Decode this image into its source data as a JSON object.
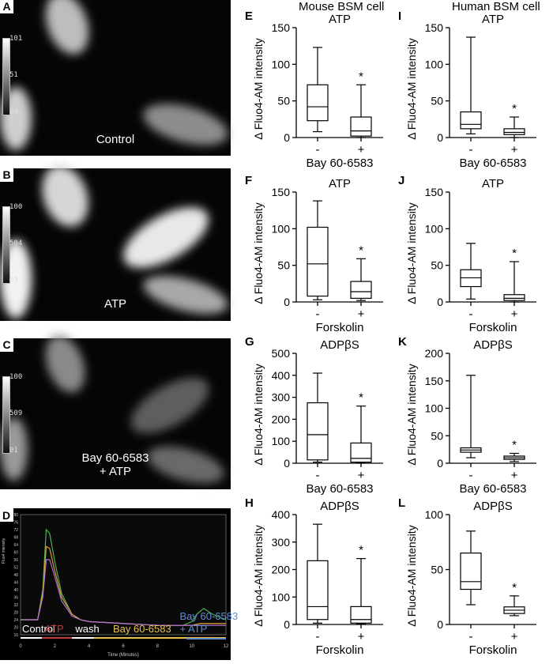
{
  "micro_panels": [
    {
      "id": "A",
      "caption": "Control",
      "scale_ticks": [
        "101",
        "51",
        "04"
      ]
    },
    {
      "id": "B",
      "caption": "ATP",
      "scale_ticks": [
        "100",
        "504",
        "03"
      ]
    },
    {
      "id": "C",
      "caption": "Bay 60-6583\n+ ATP",
      "scale_ticks": [
        "100",
        "509",
        "01"
      ]
    }
  ],
  "column_titles": {
    "mouse": "Mouse BSM cell",
    "human": "Human BSM cell"
  },
  "chart_data": [
    {
      "type": "box",
      "panel": "E",
      "title": "ATP",
      "ylabel": "Δ Fluo4-AM intensity",
      "xlabel": "Bay 60-6583",
      "categories": [
        "-",
        "+"
      ],
      "ylim": [
        0,
        150
      ],
      "yticks": [
        0,
        50,
        100,
        150
      ],
      "significance": "*",
      "boxes": [
        {
          "min": 8,
          "q1": 23,
          "median": 42,
          "q3": 72,
          "max": 123
        },
        {
          "min": 0,
          "q1": 2,
          "median": 9,
          "q3": 28,
          "max": 72
        }
      ]
    },
    {
      "type": "box",
      "panel": "F",
      "title": "ATP",
      "ylabel": "Δ Fluo4-AM intensity",
      "xlabel": "Forskolin",
      "categories": [
        "-",
        "+"
      ],
      "ylim": [
        0,
        150
      ],
      "yticks": [
        0,
        50,
        100,
        150
      ],
      "significance": "*",
      "boxes": [
        {
          "min": 3,
          "q1": 8,
          "median": 52,
          "q3": 102,
          "max": 138
        },
        {
          "min": 2,
          "q1": 5,
          "median": 14,
          "q3": 28,
          "max": 59
        }
      ]
    },
    {
      "type": "box",
      "panel": "G",
      "title": "ADPβS",
      "ylabel": "Δ Fluo4-AM intensity",
      "xlabel": "Bay 60-6583",
      "categories": [
        "-",
        "+"
      ],
      "ylim": [
        0,
        500
      ],
      "yticks": [
        0,
        100,
        200,
        300,
        400,
        500
      ],
      "significance": "*",
      "boxes": [
        {
          "min": 5,
          "q1": 15,
          "median": 130,
          "q3": 275,
          "max": 410
        },
        {
          "min": 2,
          "q1": 5,
          "median": 22,
          "q3": 92,
          "max": 260
        }
      ]
    },
    {
      "type": "box",
      "panel": "H",
      "title": "ADPβS",
      "ylabel": "Δ Fluo4-AM intensity",
      "xlabel": "Forskolin",
      "categories": [
        "-",
        "+"
      ],
      "ylim": [
        0,
        400
      ],
      "yticks": [
        0,
        100,
        200,
        300,
        400
      ],
      "significance": "*",
      "boxes": [
        {
          "min": 5,
          "q1": 18,
          "median": 65,
          "q3": 232,
          "max": 365
        },
        {
          "min": 2,
          "q1": 5,
          "median": 18,
          "q3": 65,
          "max": 240
        }
      ]
    },
    {
      "type": "box",
      "panel": "I",
      "title": "ATP",
      "ylabel": "Δ Fluo4-AM intensity",
      "xlabel": "Bay 60-6583",
      "categories": [
        "-",
        "+"
      ],
      "ylim": [
        0,
        150
      ],
      "yticks": [
        0,
        50,
        100,
        150
      ],
      "significance": "*",
      "boxes": [
        {
          "min": 5,
          "q1": 12,
          "median": 18,
          "q3": 35,
          "max": 137
        },
        {
          "min": 0,
          "q1": 4,
          "median": 7,
          "q3": 12,
          "max": 28
        }
      ]
    },
    {
      "type": "box",
      "panel": "J",
      "title": "ATP",
      "ylabel": "Δ Fluo4-AM intensity",
      "xlabel": "Forskolin",
      "categories": [
        "-",
        "+"
      ],
      "ylim": [
        0,
        150
      ],
      "yticks": [
        0,
        50,
        100,
        150
      ],
      "significance": "*",
      "boxes": [
        {
          "min": 4,
          "q1": 21,
          "median": 33,
          "q3": 44,
          "max": 80
        },
        {
          "min": 0,
          "q1": 2,
          "median": 5,
          "q3": 10,
          "max": 55
        }
      ]
    },
    {
      "type": "box",
      "panel": "K",
      "title": "ADPβS",
      "ylabel": "Δ Fluo4-AM intensity",
      "xlabel": "Bay 60-6583",
      "categories": [
        "-",
        "+"
      ],
      "ylim": [
        0,
        200
      ],
      "yticks": [
        0,
        50,
        100,
        150,
        200
      ],
      "significance": "*",
      "boxes": [
        {
          "min": 10,
          "q1": 20,
          "median": 24,
          "q3": 28,
          "max": 160
        },
        {
          "min": 3,
          "q1": 7,
          "median": 10,
          "q3": 13,
          "max": 18
        }
      ]
    },
    {
      "type": "box",
      "panel": "L",
      "title": "ADPβS",
      "ylabel": "Δ Fluo4-AM intensity",
      "xlabel": "Forskolin",
      "categories": [
        "-",
        "+"
      ],
      "ylim": [
        0,
        100
      ],
      "yticks": [
        0,
        50,
        100
      ],
      "significance": "*",
      "boxes": [
        {
          "min": 18,
          "q1": 32,
          "median": 39,
          "q3": 65,
          "max": 85
        },
        {
          "min": 8,
          "q1": 10,
          "median": 13,
          "q3": 16,
          "max": 26
        }
      ]
    },
    {
      "type": "line",
      "panel": "D",
      "xlabel": "Time (Minutes)",
      "ylabel": "Fluo4 intensity",
      "xlim": [
        0,
        12
      ],
      "xticks": [
        0,
        2,
        4,
        6,
        8,
        10,
        12
      ],
      "ylim": [
        16,
        80
      ],
      "yticks": [
        16,
        20,
        24,
        28,
        32,
        36,
        40,
        44,
        48,
        52,
        56,
        60,
        64,
        68,
        72,
        76,
        80
      ],
      "series": [
        {
          "color": "#4caf50",
          "x": [
            0,
            1.0,
            1.3,
            1.5,
            1.7,
            2.0,
            2.4,
            3.0,
            3.5,
            4,
            6,
            8,
            9.5,
            10,
            10.3,
            10.7,
            11.2,
            12
          ],
          "y": [
            24,
            24,
            40,
            72,
            70,
            55,
            38,
            27,
            24,
            23,
            22,
            21,
            21,
            23,
            27,
            30,
            27,
            24
          ]
        },
        {
          "color": "#e0a030",
          "x": [
            0,
            1.0,
            1.3,
            1.5,
            1.7,
            2.0,
            2.4,
            3.0,
            3.5,
            4,
            6,
            8,
            9.5,
            10,
            10.5,
            11,
            12
          ],
          "y": [
            24,
            24,
            38,
            63,
            62,
            50,
            36,
            27,
            24,
            23,
            22,
            21,
            21,
            21,
            22,
            22,
            22
          ]
        },
        {
          "color": "#b070d0",
          "x": [
            0,
            1.0,
            1.3,
            1.5,
            1.7,
            2.0,
            2.4,
            3.0,
            3.5,
            4,
            6,
            8,
            9.5,
            10,
            10.5,
            11,
            12
          ],
          "y": [
            24,
            24,
            36,
            56,
            56,
            47,
            34,
            26,
            24,
            23,
            22,
            21,
            21,
            21,
            21,
            21,
            21
          ]
        }
      ],
      "treatments": [
        {
          "label": "Control",
          "color": "#ffffff",
          "start": 0,
          "end": 1.25
        },
        {
          "label": "ATP",
          "color": "#c0393b",
          "start": 1.25,
          "end": 3.0
        },
        {
          "label": "wash",
          "color": "#ffffff",
          "start": 3.0,
          "end": 4.3
        },
        {
          "label": "Bay 60-6583",
          "color": "#e8c24a",
          "start": 4.3,
          "end": 12
        },
        {
          "label": "Bay 60-6583\n+ ATP",
          "color": "#5b8fd8",
          "start": 9.7,
          "end": 12
        }
      ]
    }
  ]
}
